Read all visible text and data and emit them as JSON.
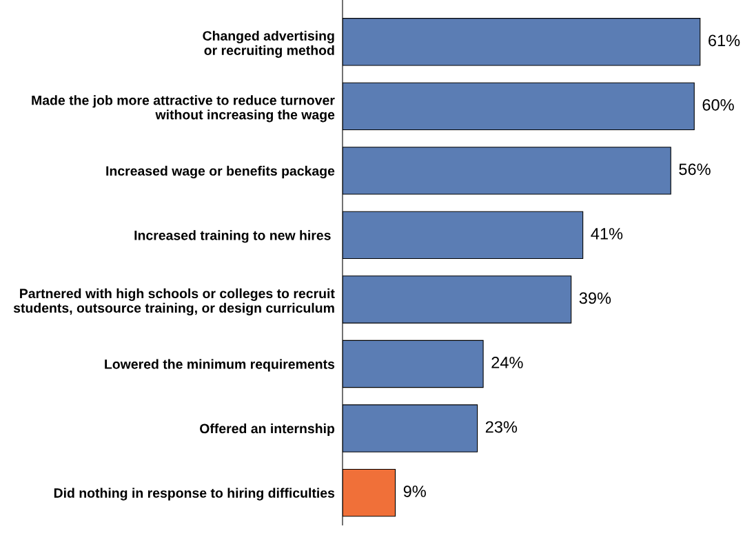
{
  "chart_data": {
    "type": "bar",
    "orientation": "horizontal",
    "categories": [
      "Changed advertising\nor recruiting method",
      "Made the job more attractive to reduce turnover\nwithout increasing the wage",
      "Increased wage or benefits package",
      "Increased training to new hires ",
      "Partnered with high schools or colleges to recruit\nstudents, outsource training, or design curriculum",
      "Lowered the minimum requirements",
      "Offered an internship",
      "Did nothing in response to hiring difficulties"
    ],
    "values": [
      61,
      60,
      56,
      41,
      39,
      24,
      23,
      9
    ],
    "colors": [
      "#5b7db4",
      "#5b7db4",
      "#5b7db4",
      "#5b7db4",
      "#5b7db4",
      "#5b7db4",
      "#5b7db4",
      "#f07039"
    ],
    "value_labels": [
      "61%",
      "60%",
      "56%",
      "41%",
      "39%",
      "24%",
      "23%",
      "9%"
    ],
    "grid": false,
    "legend": false
  }
}
